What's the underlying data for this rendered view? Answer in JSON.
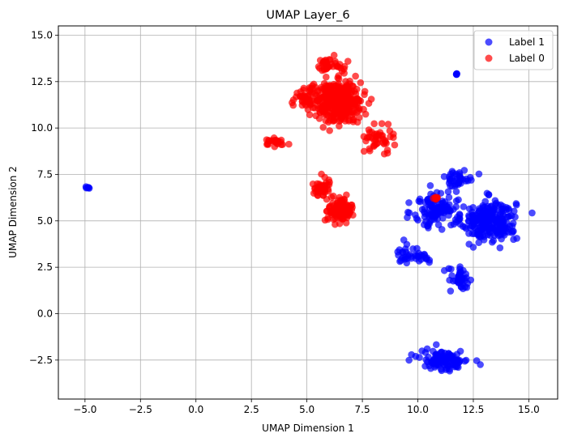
{
  "chart_data": {
    "type": "scatter",
    "title": "UMAP Layer_6",
    "xlabel": "UMAP Dimension 1",
    "ylabel": "UMAP Dimension 2",
    "xlim": [
      -6.2,
      16.3
    ],
    "ylim": [
      -4.6,
      15.5
    ],
    "grid": true,
    "legend_position": "top-right",
    "xticks": [
      -5.0,
      -2.5,
      0.0,
      2.5,
      5.0,
      7.5,
      10.0,
      12.5,
      15.0
    ],
    "yticks": [
      -2.5,
      0.0,
      2.5,
      5.0,
      7.5,
      10.0,
      12.5,
      15.0
    ],
    "xtick_labels": [
      "−5.0",
      "−2.5",
      "0.0",
      "2.5",
      "5.0",
      "7.5",
      "10.0",
      "12.5",
      "15.0"
    ],
    "ytick_labels": [
      "−2.5",
      "0.0",
      "2.5",
      "5.0",
      "7.5",
      "10.0",
      "12.5",
      "15.0"
    ],
    "series": [
      {
        "name": "Label 1",
        "color": "#0000ff",
        "clusters": [
          {
            "center": [
              13.2,
              5.0
            ],
            "spread": [
              1.1,
              1.0
            ],
            "count": 260
          },
          {
            "center": [
              10.8,
              5.6
            ],
            "spread": [
              0.9,
              0.9
            ],
            "count": 110
          },
          {
            "center": [
              9.9,
              3.2
            ],
            "spread": [
              0.9,
              0.5
            ],
            "count": 40
          },
          {
            "center": [
              11.9,
              1.8
            ],
            "spread": [
              0.5,
              0.6
            ],
            "count": 40
          },
          {
            "center": [
              11.2,
              -2.5
            ],
            "spread": [
              1.0,
              0.5
            ],
            "count": 110
          },
          {
            "center": [
              11.8,
              7.3
            ],
            "spread": [
              0.6,
              0.4
            ],
            "count": 40
          },
          {
            "center": [
              11.75,
              12.9
            ],
            "spread": [
              0.03,
              0.03
            ],
            "count": 6
          },
          {
            "center": [
              -4.9,
              6.8
            ],
            "spread": [
              0.08,
              0.05
            ],
            "count": 6
          }
        ]
      },
      {
        "name": "Label 0",
        "color": "#ff0000",
        "clusters": [
          {
            "center": [
              6.5,
              11.4
            ],
            "spread": [
              0.9,
              1.0
            ],
            "count": 320
          },
          {
            "center": [
              5.0,
              11.6
            ],
            "spread": [
              0.6,
              0.6
            ],
            "count": 60
          },
          {
            "center": [
              6.0,
              13.4
            ],
            "spread": [
              0.6,
              0.4
            ],
            "count": 40
          },
          {
            "center": [
              3.5,
              9.2
            ],
            "spread": [
              0.6,
              0.25
            ],
            "count": 25
          },
          {
            "center": [
              8.3,
              9.5
            ],
            "spread": [
              0.6,
              0.6
            ],
            "count": 45
          },
          {
            "center": [
              6.5,
              5.6
            ],
            "spread": [
              0.5,
              0.6
            ],
            "count": 110
          },
          {
            "center": [
              5.7,
              6.8
            ],
            "spread": [
              0.4,
              0.5
            ],
            "count": 40
          },
          {
            "center": [
              10.8,
              6.2
            ],
            "spread": [
              0.1,
              0.06
            ],
            "count": 8
          }
        ]
      }
    ]
  }
}
